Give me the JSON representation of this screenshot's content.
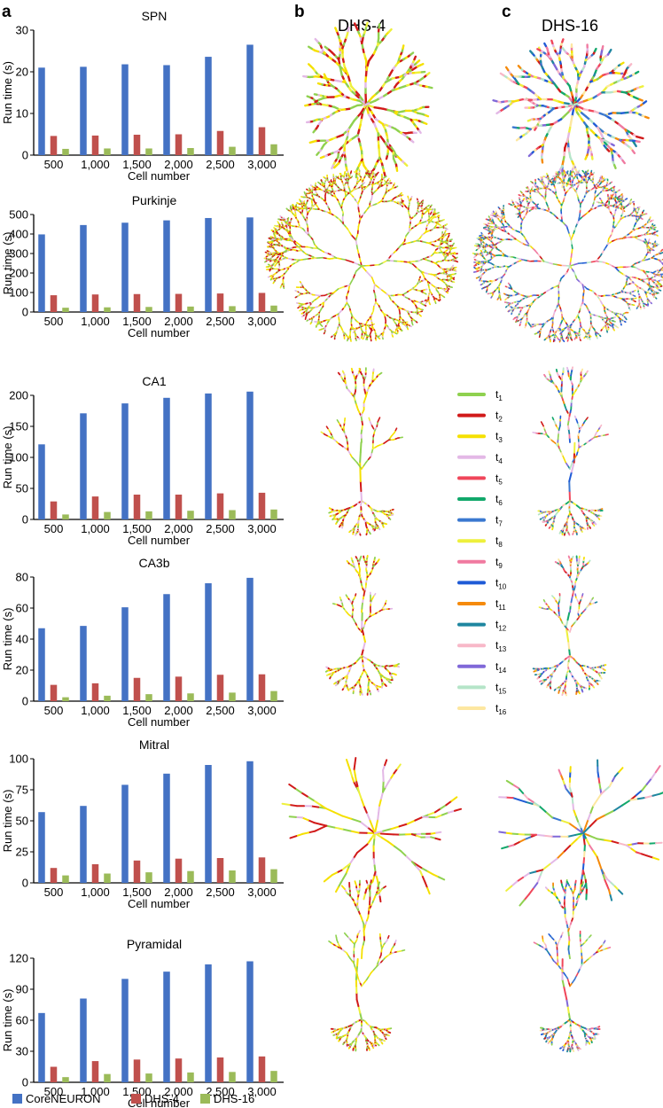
{
  "panel_labels": {
    "a": "a",
    "b": "b",
    "c": "c"
  },
  "column_titles": {
    "dhs4": "DHS-4",
    "dhs16": "DHS-16"
  },
  "legend": {
    "series": [
      {
        "name": "CoreNEURON",
        "color": "#4472C4"
      },
      {
        "name": "DHS-4",
        "color": "#C0504D"
      },
      {
        "name": "DHS-16",
        "color": "#9BBB59"
      }
    ]
  },
  "threads": [
    {
      "label": "t",
      "sub": "1",
      "color": "#8fd14f"
    },
    {
      "label": "t",
      "sub": "2",
      "color": "#d11a1a"
    },
    {
      "label": "t",
      "sub": "3",
      "color": "#f5e000"
    },
    {
      "label": "t",
      "sub": "4",
      "color": "#e3b8e6"
    },
    {
      "label": "t",
      "sub": "5",
      "color": "#f0465a"
    },
    {
      "label": "t",
      "sub": "6",
      "color": "#12a86b"
    },
    {
      "label": "t",
      "sub": "7",
      "color": "#3a78d0"
    },
    {
      "label": "t",
      "sub": "8",
      "color": "#eef03c"
    },
    {
      "label": "t",
      "sub": "9",
      "color": "#f07aa0"
    },
    {
      "label": "t",
      "sub": "10",
      "color": "#1f5bd6"
    },
    {
      "label": "t",
      "sub": "11",
      "color": "#f58a0b"
    },
    {
      "label": "t",
      "sub": "12",
      "color": "#1f86a0"
    },
    {
      "label": "t",
      "sub": "13",
      "color": "#f8b8c8"
    },
    {
      "label": "t",
      "sub": "14",
      "color": "#8068d8"
    },
    {
      "label": "t",
      "sub": "15",
      "color": "#b5e5c8"
    },
    {
      "label": "t",
      "sub": "16",
      "color": "#fde7a0"
    }
  ],
  "chart_data": [
    {
      "type": "bar",
      "title": "SPN",
      "xlabel": "Cell number",
      "ylabel": "Run time (s)",
      "categories": [
        "500",
        "1,000",
        "1,500",
        "2,000",
        "2,500",
        "3,000"
      ],
      "ylim": [
        0,
        30
      ],
      "yticks": [
        0,
        10,
        20,
        30
      ],
      "series": [
        {
          "name": "CoreNEURON",
          "values": [
            21,
            21.2,
            21.8,
            21.6,
            23.6,
            26.5
          ]
        },
        {
          "name": "DHS-4",
          "values": [
            4.6,
            4.7,
            4.9,
            5,
            5.8,
            6.7
          ]
        },
        {
          "name": "DHS-16",
          "values": [
            1.5,
            1.6,
            1.6,
            1.7,
            2,
            2.6
          ]
        }
      ]
    },
    {
      "type": "bar",
      "title": "Purkinje",
      "xlabel": "Cell number",
      "ylabel": "Run time (s)",
      "categories": [
        "500",
        "1,000",
        "1,500",
        "2,000",
        "2,500",
        "3,000"
      ],
      "ylim": [
        0,
        500
      ],
      "yticks": [
        0,
        100,
        200,
        300,
        400,
        500
      ],
      "series": [
        {
          "name": "CoreNEURON",
          "values": [
            398,
            446,
            458,
            470,
            482,
            485
          ]
        },
        {
          "name": "DHS-4",
          "values": [
            86,
            90,
            92,
            93,
            95,
            98
          ]
        },
        {
          "name": "DHS-16",
          "values": [
            22,
            24,
            26,
            28,
            30,
            33
          ]
        }
      ]
    },
    {
      "type": "bar",
      "title": "CA1",
      "xlabel": "Cell number",
      "ylabel": "Run time (s)",
      "categories": [
        "500",
        "1,000",
        "1,500",
        "2,000",
        "2,500",
        "3,000"
      ],
      "ylim": [
        0,
        200
      ],
      "yticks": [
        0,
        50,
        100,
        150,
        200
      ],
      "series": [
        {
          "name": "CoreNEURON",
          "values": [
            121,
            171,
            187,
            196,
            203,
            206
          ]
        },
        {
          "name": "DHS-4",
          "values": [
            29,
            37,
            40,
            40,
            42,
            43
          ]
        },
        {
          "name": "DHS-16",
          "values": [
            8,
            12,
            13,
            14,
            15,
            16
          ]
        }
      ]
    },
    {
      "type": "bar",
      "title": "CA3b",
      "xlabel": "Cell number",
      "ylabel": "Run time (s)",
      "categories": [
        "500",
        "1,000",
        "1,500",
        "2,000",
        "2,500",
        "3,000"
      ],
      "ylim": [
        0,
        80
      ],
      "yticks": [
        0,
        20,
        40,
        60,
        80
      ],
      "series": [
        {
          "name": "CoreNEURON",
          "values": [
            47,
            48.5,
            60.5,
            69,
            76,
            79.5
          ]
        },
        {
          "name": "DHS-4",
          "values": [
            10.5,
            11.5,
            15,
            15.8,
            17,
            17.3
          ]
        },
        {
          "name": "DHS-16",
          "values": [
            2.5,
            3.5,
            4.5,
            5,
            5.5,
            6.5
          ]
        }
      ]
    },
    {
      "type": "bar",
      "title": "Mitral",
      "xlabel": "Cell number",
      "ylabel": "Run time (s)",
      "categories": [
        "500",
        "1,000",
        "1,500",
        "2,000",
        "2,500",
        "3,000"
      ],
      "ylim": [
        0,
        100
      ],
      "yticks": [
        0,
        25,
        50,
        75,
        100
      ],
      "series": [
        {
          "name": "CoreNEURON",
          "values": [
            57,
            62,
            79,
            88,
            95,
            98
          ]
        },
        {
          "name": "DHS-4",
          "values": [
            12,
            15,
            18,
            19.5,
            20,
            20.5
          ]
        },
        {
          "name": "DHS-16",
          "values": [
            6,
            7.5,
            8.5,
            9.5,
            10,
            11
          ]
        }
      ]
    },
    {
      "type": "bar",
      "title": "Pyramidal",
      "xlabel": "Cell number",
      "ylabel": "Run time (s)",
      "categories": [
        "500",
        "1,000",
        "1,500",
        "2,000",
        "2,500",
        "3,000"
      ],
      "ylim": [
        0,
        120
      ],
      "yticks": [
        0,
        30,
        60,
        90,
        120
      ],
      "series": [
        {
          "name": "CoreNEURON",
          "values": [
            67,
            81,
            100,
            107,
            114,
            117
          ]
        },
        {
          "name": "DHS-4",
          "values": [
            15,
            20.5,
            22,
            23,
            24,
            25
          ]
        },
        {
          "name": "DHS-16",
          "values": [
            5,
            8,
            8.5,
            9.5,
            10,
            11
          ]
        }
      ]
    }
  ]
}
